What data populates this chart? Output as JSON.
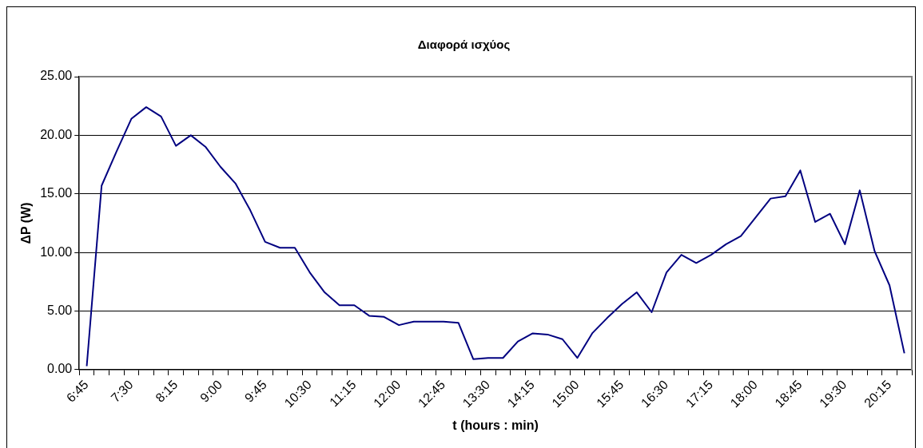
{
  "chart_data": {
    "type": "line",
    "title": "Διαφορά ισχύος",
    "xlabel": "t (hours : min)",
    "ylabel": "ΔP (W)",
    "categories": [
      "6:45",
      null,
      null,
      "7:30",
      null,
      null,
      "8:15",
      null,
      null,
      "9:00",
      null,
      null,
      "9:45",
      null,
      null,
      "10:30",
      null,
      null,
      "11:15",
      null,
      null,
      "12:00",
      null,
      null,
      "12:45",
      null,
      null,
      "13:30",
      null,
      null,
      "14:15",
      null,
      null,
      "15:00",
      null,
      null,
      "15:45",
      null,
      null,
      "16:30",
      null,
      null,
      "17:15",
      null,
      null,
      "18:00",
      null,
      null,
      "18:45",
      null,
      null,
      "19:30",
      null,
      null,
      "20:15",
      null
    ],
    "series": [
      {
        "color": "#000080",
        "values": [
          0.3,
          15.7,
          18.6,
          21.4,
          22.4,
          21.6,
          19.1,
          20.0,
          19.0,
          17.3,
          15.9,
          13.6,
          10.9,
          10.4,
          10.4,
          8.3,
          6.6,
          5.5,
          5.5,
          4.6,
          4.5,
          3.8,
          4.1,
          4.1,
          4.1,
          4.0,
          0.9,
          1.0,
          1.0,
          2.4,
          3.1,
          3.0,
          2.6,
          1.0,
          3.1,
          4.4,
          5.6,
          6.6,
          4.9,
          8.3,
          9.8,
          9.1,
          9.8,
          10.7,
          11.4,
          13.0,
          14.6,
          14.8,
          17.0,
          12.6,
          13.3,
          10.7,
          15.3,
          10.1,
          7.2,
          1.4
        ]
      }
    ],
    "ylim": [
      0,
      25
    ],
    "yticks": [
      {
        "value": 0,
        "label": "0.00"
      },
      {
        "value": 5,
        "label": "5.00"
      },
      {
        "value": 10,
        "label": "10.00"
      },
      {
        "value": 15,
        "label": "15.00"
      },
      {
        "value": 20,
        "label": "20.00"
      },
      {
        "value": 25,
        "label": "25.00"
      }
    ],
    "grid": "y",
    "legend": false,
    "marker": "none",
    "line_style": "solid"
  }
}
